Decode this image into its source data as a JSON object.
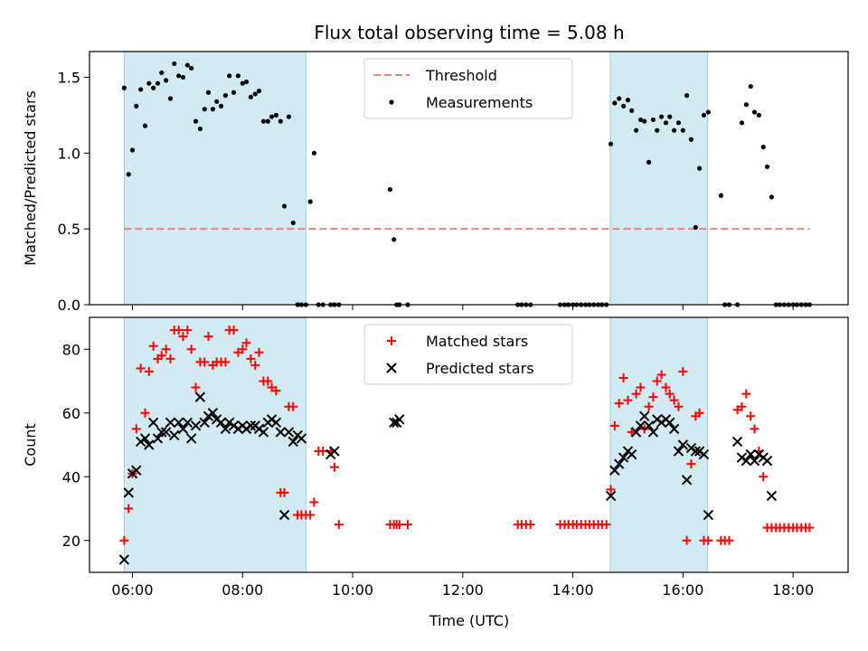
{
  "chart_data": {
    "title": "Flux total observing time = 5.08 h",
    "xlabel": "Time (UTC)",
    "x_ticks": [
      6,
      8,
      10,
      12,
      14,
      16,
      18
    ],
    "x_tick_labels": [
      "06:00",
      "08:00",
      "10:00",
      "12:00",
      "14:00",
      "16:00",
      "18:00"
    ],
    "xlim": [
      5.22,
      19.0
    ],
    "shaded_intervals": [
      [
        5.85,
        9.15
      ],
      [
        14.68,
        16.45
      ]
    ],
    "shade_color": "#add8e6",
    "panels": [
      {
        "type": "scatter",
        "ylabel": "Matched/Predicted stars",
        "ylim": [
          0,
          1.67
        ],
        "y_ticks": [
          0.0,
          0.5,
          1.0,
          1.5
        ],
        "y_tick_labels": [
          "0.0",
          "0.5",
          "1.0",
          "1.5"
        ],
        "legend_position": "top-center",
        "threshold": {
          "name": "Threshold",
          "y": 0.5,
          "x_range": [
            5.85,
            18.3
          ],
          "color": "#f08080"
        },
        "series": [
          {
            "name": "Measurements",
            "color": "#000000",
            "marker": "dot",
            "x": [
              5.85,
              5.93,
              6.0,
              6.07,
              6.15,
              6.23,
              6.3,
              6.38,
              6.46,
              6.53,
              6.61,
              6.69,
              6.76,
              6.84,
              6.92,
              7.0,
              7.07,
              7.15,
              7.23,
              7.31,
              7.38,
              7.46,
              7.53,
              7.61,
              7.69,
              7.76,
              7.84,
              7.92,
              8.0,
              8.07,
              8.15,
              8.23,
              8.3,
              8.38,
              8.46,
              8.53,
              8.61,
              8.69,
              8.76,
              8.84,
              8.92,
              9.0,
              9.07,
              9.15,
              9.23,
              9.3,
              9.38,
              9.46,
              9.6,
              9.67,
              9.75,
              10.68,
              10.75,
              10.8,
              10.85,
              11.0,
              13.0,
              13.07,
              13.15,
              13.23,
              13.77,
              13.85,
              13.92,
              14.0,
              14.07,
              14.15,
              14.23,
              14.3,
              14.38,
              14.46,
              14.53,
              14.61,
              14.69,
              14.76,
              14.84,
              14.92,
              15.0,
              15.07,
              15.15,
              15.23,
              15.3,
              15.38,
              15.46,
              15.53,
              15.61,
              15.69,
              15.76,
              15.84,
              15.92,
              16.0,
              16.07,
              16.15,
              16.23,
              16.3,
              16.38,
              16.46,
              16.69,
              16.76,
              16.84,
              16.99,
              17.07,
              17.15,
              17.23,
              17.3,
              17.38,
              17.46,
              17.53,
              17.61,
              17.69,
              17.76,
              17.84,
              17.92,
              18.0,
              18.07,
              18.15,
              18.23,
              18.3
            ],
            "y": [
              1.43,
              0.86,
              1.02,
              1.31,
              1.42,
              1.18,
              1.46,
              1.43,
              1.46,
              1.53,
              1.48,
              1.36,
              1.59,
              1.51,
              1.5,
              1.58,
              1.56,
              1.21,
              1.16,
              1.29,
              1.4,
              1.29,
              1.34,
              1.31,
              1.38,
              1.51,
              1.4,
              1.51,
              1.46,
              1.47,
              1.37,
              1.39,
              1.41,
              1.21,
              1.21,
              1.24,
              1.25,
              1.21,
              0.65,
              1.24,
              0.54,
              0.0,
              0.0,
              0.0,
              0.68,
              1.0,
              0.0,
              0.0,
              0.0,
              0.0,
              0.0,
              0.76,
              0.43,
              0.0,
              0.0,
              0.0,
              0.0,
              0.0,
              0.0,
              0.0,
              0.0,
              0.0,
              0.0,
              0.0,
              0.0,
              0.0,
              0.0,
              0.0,
              0.0,
              0.0,
              0.0,
              0.0,
              1.06,
              1.33,
              1.36,
              1.31,
              1.35,
              1.28,
              1.15,
              1.22,
              1.21,
              0.94,
              1.22,
              1.15,
              1.24,
              1.2,
              1.24,
              1.15,
              1.2,
              1.15,
              1.38,
              1.09,
              0.51,
              0.9,
              1.25,
              1.27,
              0.72,
              0.0,
              0.0,
              0.0,
              1.2,
              1.32,
              1.44,
              1.27,
              1.25,
              1.04,
              0.91,
              0.71,
              0.0,
              0.0,
              0.0,
              0.0,
              0.0,
              0.0,
              0.0,
              0.0,
              0.0
            ]
          }
        ]
      },
      {
        "type": "scatter",
        "ylabel": "Count",
        "ylim": [
          10,
          90
        ],
        "y_ticks": [
          20,
          40,
          60,
          80
        ],
        "y_tick_labels": [
          "20",
          "40",
          "60",
          "80"
        ],
        "legend_position": "top-center",
        "series": [
          {
            "name": "Matched stars",
            "color": "#ff0000",
            "marker": "plus",
            "x": [
              5.85,
              5.93,
              6.0,
              6.07,
              6.15,
              6.23,
              6.3,
              6.38,
              6.46,
              6.53,
              6.61,
              6.69,
              6.76,
              6.84,
              6.92,
              7.0,
              7.07,
              7.15,
              7.23,
              7.31,
              7.38,
              7.46,
              7.53,
              7.61,
              7.69,
              7.76,
              7.84,
              7.92,
              8.0,
              8.07,
              8.15,
              8.23,
              8.3,
              8.38,
              8.46,
              8.53,
              8.61,
              8.69,
              8.76,
              8.84,
              8.92,
              9.0,
              9.07,
              9.15,
              9.23,
              9.3,
              9.38,
              9.46,
              9.6,
              9.67,
              9.75,
              10.68,
              10.75,
              10.8,
              10.85,
              11.0,
              13.0,
              13.07,
              13.15,
              13.23,
              13.77,
              13.85,
              13.92,
              14.0,
              14.07,
              14.15,
              14.23,
              14.3,
              14.38,
              14.46,
              14.53,
              14.61,
              14.69,
              14.76,
              14.84,
              14.92,
              15.0,
              15.07,
              15.15,
              15.23,
              15.3,
              15.38,
              15.46,
              15.53,
              15.61,
              15.69,
              15.76,
              15.84,
              15.92,
              16.0,
              16.07,
              16.15,
              16.23,
              16.3,
              16.38,
              16.46,
              16.69,
              16.76,
              16.84,
              16.99,
              17.07,
              17.15,
              17.23,
              17.3,
              17.38,
              17.46,
              17.53,
              17.61,
              17.69,
              17.76,
              17.84,
              17.92,
              18.0,
              18.07,
              18.15,
              18.23,
              18.3
            ],
            "y": [
              20,
              30,
              41,
              55,
              74,
              60,
              73,
              81,
              77,
              78,
              80,
              77,
              86,
              86,
              84,
              86,
              80,
              68,
              76,
              76,
              84,
              75,
              76,
              76,
              76,
              86,
              86,
              79,
              80,
              82,
              77,
              75,
              79,
              70,
              70,
              68,
              67,
              35,
              35,
              62,
              62,
              28,
              28,
              28,
              28,
              32,
              48,
              48,
              48,
              43,
              25,
              25,
              25,
              25,
              25,
              25,
              25,
              25,
              25,
              25,
              25,
              25,
              25,
              25,
              25,
              25,
              25,
              25,
              25,
              25,
              25,
              25,
              36,
              56,
              63,
              71,
              64,
              54,
              66,
              68,
              55,
              62,
              65,
              70,
              72,
              68,
              66,
              64,
              62,
              73,
              20,
              44,
              59,
              60,
              20,
              20,
              20,
              20,
              20,
              61,
              62,
              66,
              59,
              55,
              48,
              40,
              24,
              24,
              24,
              24,
              24,
              24,
              24,
              24,
              24,
              24,
              24
            ]
          },
          {
            "name": "Predicted stars",
            "color": "#000000",
            "marker": "cross",
            "x": [
              5.85,
              5.93,
              6.0,
              6.07,
              6.15,
              6.23,
              6.3,
              6.38,
              6.46,
              6.53,
              6.61,
              6.69,
              6.76,
              6.84,
              6.92,
              7.0,
              7.07,
              7.15,
              7.23,
              7.31,
              7.38,
              7.46,
              7.53,
              7.61,
              7.69,
              7.76,
              7.84,
              7.92,
              8.0,
              8.07,
              8.15,
              8.23,
              8.3,
              8.38,
              8.46,
              8.53,
              8.61,
              8.69,
              8.76,
              8.84,
              8.92,
              9.0,
              9.07,
              9.6,
              9.67,
              10.75,
              10.8,
              10.85,
              14.69,
              14.76,
              14.84,
              14.92,
              15.0,
              15.07,
              15.15,
              15.23,
              15.3,
              15.38,
              15.46,
              15.53,
              15.61,
              15.69,
              15.76,
              15.84,
              15.92,
              16.0,
              16.07,
              16.15,
              16.23,
              16.3,
              16.38,
              16.46,
              16.99,
              17.07,
              17.15,
              17.23,
              17.3,
              17.38,
              17.46,
              17.53,
              17.61
            ],
            "y": [
              14,
              35,
              41,
              42,
              51,
              52,
              50,
              57,
              52,
              54,
              54,
              57,
              53,
              57,
              55,
              57,
              52,
              56,
              65,
              57,
              59,
              60,
              58,
              57,
              55,
              57,
              56,
              55,
              56,
              55,
              56,
              56,
              55,
              54,
              57,
              58,
              57,
              54,
              28,
              54,
              51,
              53,
              52,
              47,
              48,
              57,
              57,
              58,
              34,
              42,
              44,
              46,
              48,
              47,
              54,
              56,
              59,
              56,
              54,
              58,
              57,
              58,
              57,
              55,
              48,
              50,
              39,
              49,
              48,
              48,
              47,
              28,
              51,
              46,
              45,
              47,
              45,
              47,
              46,
              45,
              34
            ]
          }
        ]
      }
    ]
  }
}
